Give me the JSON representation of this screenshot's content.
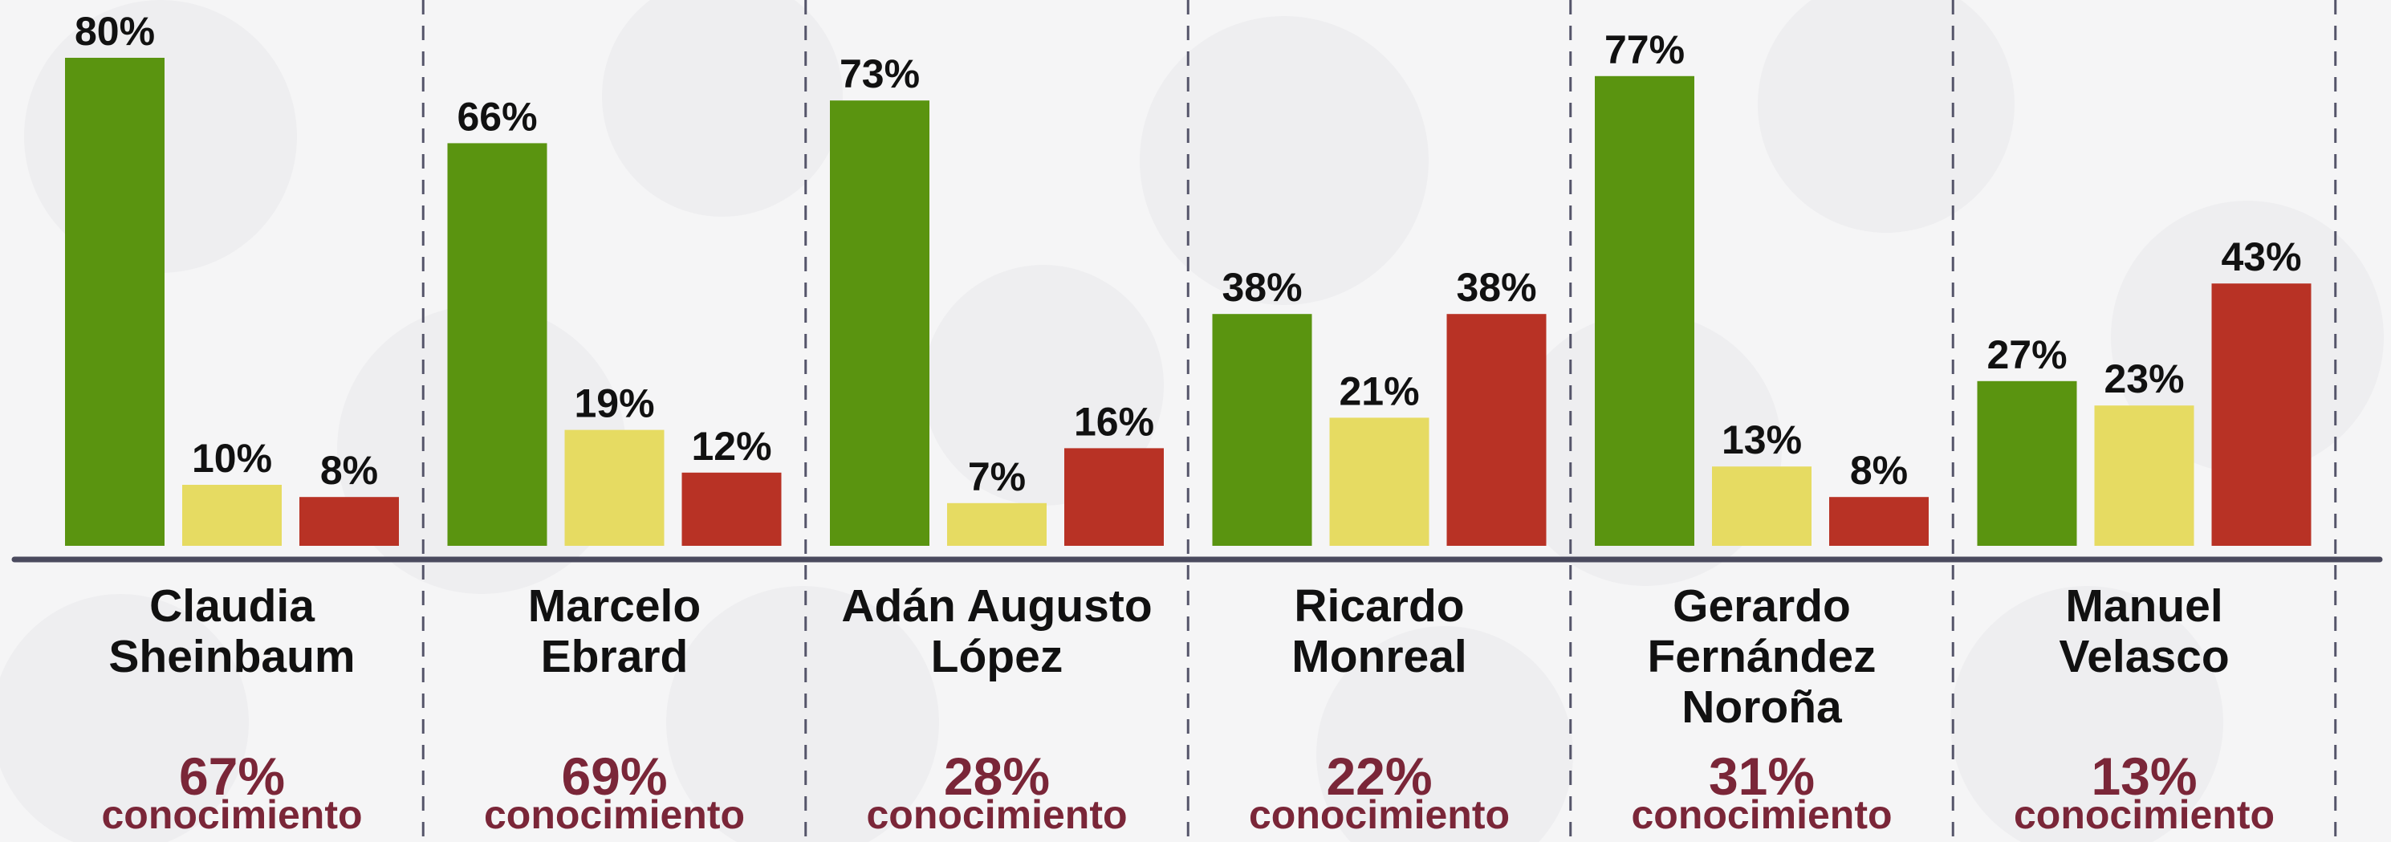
{
  "chart_data": {
    "type": "bar",
    "categories": [
      [
        "Claudia",
        "Sheinbaum"
      ],
      [
        "Marcelo",
        "Ebrard"
      ],
      [
        "Adán Augusto",
        "López"
      ],
      [
        "Ricardo",
        "Monreal"
      ],
      [
        "Gerardo",
        "Fernández",
        "Noroña"
      ],
      [
        "Manuel",
        "Velasco"
      ]
    ],
    "series": [
      {
        "color": "#5a9410",
        "values": [
          80,
          66,
          73,
          38,
          77,
          27
        ],
        "value_labels": [
          "80%",
          "66%",
          "73%",
          "38%",
          "77%",
          "27%"
        ]
      },
      {
        "color": "#e6db62",
        "values": [
          10,
          19,
          7,
          21,
          13,
          23
        ],
        "value_labels": [
          "10%",
          "19%",
          "7%",
          "21%",
          "13%",
          "23%"
        ]
      },
      {
        "color": "#b83225",
        "values": [
          8,
          12,
          16,
          38,
          8,
          43
        ],
        "value_labels": [
          "8%",
          "12%",
          "16%",
          "38%",
          "8%",
          "43%"
        ]
      }
    ],
    "awareness": {
      "values": [
        67,
        69,
        28,
        22,
        31,
        13
      ],
      "value_labels": [
        "67%",
        "69%",
        "28%",
        "22%",
        "31%",
        "13%"
      ],
      "label": "conocimiento",
      "color": "#7a2638"
    },
    "ylim": [
      0,
      80
    ]
  }
}
